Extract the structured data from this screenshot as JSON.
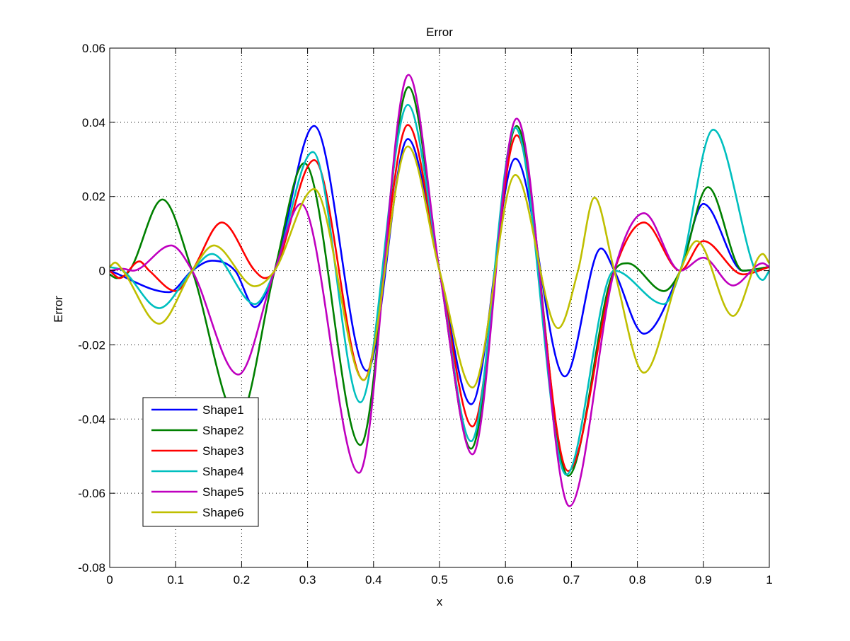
{
  "chart_data": {
    "type": "line",
    "title": "Error",
    "xlabel": "x",
    "ylabel": "Error",
    "xlim": [
      0,
      1
    ],
    "ylim": [
      -0.08,
      0.06
    ],
    "xticks": [
      0,
      0.1,
      0.2,
      0.3,
      0.4,
      0.5,
      0.6,
      0.7,
      0.8,
      0.9,
      1
    ],
    "xtick_labels": [
      "0",
      "0.1",
      "0.2",
      "0.3",
      "0.4",
      "0.5",
      "0.6",
      "0.7",
      "0.8",
      "0.9",
      "1"
    ],
    "yticks": [
      -0.08,
      -0.06,
      -0.04,
      -0.02,
      0,
      0.02,
      0.04,
      0.06
    ],
    "ytick_labels": [
      "-0.08",
      "-0.06",
      "-0.04",
      "-0.02",
      "0",
      "0.02",
      "0.04",
      "0.06"
    ],
    "grid": true,
    "legend_position": "bottom-left",
    "series": [
      {
        "name": "Shape1",
        "color": "#0000ff",
        "points": [
          [
            0,
            0
          ],
          [
            0.09,
            -0.0058
          ],
          [
            0.125,
            0
          ],
          [
            0.155,
            0.0027
          ],
          [
            0.19,
            0
          ],
          [
            0.22,
            -0.0098
          ],
          [
            0.25,
            0
          ],
          [
            0.31,
            0.039
          ],
          [
            0.39,
            -0.027
          ],
          [
            0.452,
            0.0355
          ],
          [
            0.5,
            0
          ],
          [
            0.548,
            -0.036
          ],
          [
            0.615,
            0.0302
          ],
          [
            0.69,
            -0.0285
          ],
          [
            0.745,
            0.006
          ],
          [
            0.765,
            0
          ],
          [
            0.81,
            -0.017
          ],
          [
            0.865,
            0
          ],
          [
            0.9,
            0.018
          ],
          [
            0.96,
            0
          ],
          [
            1,
            0.001
          ]
        ]
      },
      {
        "name": "Shape2",
        "color": "#008000",
        "points": [
          [
            0,
            -0.001
          ],
          [
            0.01,
            -0.002
          ],
          [
            0.03,
            0
          ],
          [
            0.08,
            0.0192
          ],
          [
            0.125,
            0
          ],
          [
            0.195,
            -0.04
          ],
          [
            0.25,
            0
          ],
          [
            0.295,
            0.029
          ],
          [
            0.38,
            -0.047
          ],
          [
            0.453,
            0.0495
          ],
          [
            0.5,
            0
          ],
          [
            0.548,
            -0.048
          ],
          [
            0.617,
            0.039
          ],
          [
            0.695,
            -0.0553
          ],
          [
            0.765,
            0
          ],
          [
            0.785,
            0.002
          ],
          [
            0.84,
            -0.0055
          ],
          [
            0.865,
            0
          ],
          [
            0.907,
            0.0225
          ],
          [
            0.96,
            0
          ],
          [
            1,
            0.001
          ]
        ]
      },
      {
        "name": "Shape3",
        "color": "#ff0000",
        "points": [
          [
            0,
            0
          ],
          [
            0.015,
            -0.002
          ],
          [
            0.045,
            0.0025
          ],
          [
            0.06,
            0
          ],
          [
            0.1,
            -0.0055
          ],
          [
            0.125,
            0
          ],
          [
            0.17,
            0.013
          ],
          [
            0.22,
            0
          ],
          [
            0.235,
            -0.002
          ],
          [
            0.25,
            0
          ],
          [
            0.31,
            0.0298
          ],
          [
            0.385,
            -0.0295
          ],
          [
            0.452,
            0.0393
          ],
          [
            0.5,
            0
          ],
          [
            0.55,
            -0.042
          ],
          [
            0.617,
            0.0365
          ],
          [
            0.695,
            -0.054
          ],
          [
            0.765,
            0
          ],
          [
            0.81,
            0.013
          ],
          [
            0.865,
            0
          ],
          [
            0.9,
            0.008
          ],
          [
            0.96,
            -0.001
          ],
          [
            1,
            0.001
          ]
        ]
      },
      {
        "name": "Shape4",
        "color": "#00bfbf",
        "points": [
          [
            0,
            0.001
          ],
          [
            0.02,
            0
          ],
          [
            0.075,
            -0.0101
          ],
          [
            0.125,
            0
          ],
          [
            0.155,
            0.0045
          ],
          [
            0.22,
            -0.009
          ],
          [
            0.25,
            0
          ],
          [
            0.308,
            0.032
          ],
          [
            0.38,
            -0.0355
          ],
          [
            0.452,
            0.0447
          ],
          [
            0.5,
            0
          ],
          [
            0.548,
            -0.046
          ],
          [
            0.615,
            0.0385
          ],
          [
            0.692,
            -0.055
          ],
          [
            0.765,
            0
          ],
          [
            0.84,
            -0.009
          ],
          [
            0.865,
            0
          ],
          [
            0.915,
            0.038
          ],
          [
            0.99,
            -0.0025
          ],
          [
            1,
            0
          ]
        ]
      },
      {
        "name": "Shape5",
        "color": "#bf00bf",
        "points": [
          [
            0,
            0
          ],
          [
            0.02,
            0.0005
          ],
          [
            0.035,
            0
          ],
          [
            0.093,
            0.0068
          ],
          [
            0.125,
            0
          ],
          [
            0.195,
            -0.028
          ],
          [
            0.25,
            0
          ],
          [
            0.29,
            0.018
          ],
          [
            0.378,
            -0.0545
          ],
          [
            0.453,
            0.0528
          ],
          [
            0.5,
            0
          ],
          [
            0.55,
            -0.0495
          ],
          [
            0.617,
            0.041
          ],
          [
            0.697,
            -0.0635
          ],
          [
            0.765,
            0
          ],
          [
            0.81,
            0.0155
          ],
          [
            0.865,
            0
          ],
          [
            0.9,
            0.0035
          ],
          [
            0.945,
            -0.004
          ],
          [
            0.99,
            0.002
          ],
          [
            1,
            0.001
          ]
        ]
      },
      {
        "name": "Shape6",
        "color": "#bfbf00",
        "points": [
          [
            0,
            0.001
          ],
          [
            0.008,
            0.0022
          ],
          [
            0.02,
            0
          ],
          [
            0.075,
            -0.0143
          ],
          [
            0.125,
            0
          ],
          [
            0.158,
            0.0068
          ],
          [
            0.22,
            -0.0042
          ],
          [
            0.25,
            0
          ],
          [
            0.31,
            0.022
          ],
          [
            0.385,
            -0.0295
          ],
          [
            0.452,
            0.0335
          ],
          [
            0.5,
            0
          ],
          [
            0.55,
            -0.0315
          ],
          [
            0.615,
            0.0258
          ],
          [
            0.68,
            -0.0155
          ],
          [
            0.71,
            0
          ],
          [
            0.735,
            0.0197
          ],
          [
            0.765,
            0
          ],
          [
            0.81,
            -0.0275
          ],
          [
            0.865,
            0
          ],
          [
            0.89,
            0.008
          ],
          [
            0.945,
            -0.0122
          ],
          [
            0.99,
            0.0045
          ],
          [
            1,
            0.002
          ]
        ]
      }
    ]
  }
}
